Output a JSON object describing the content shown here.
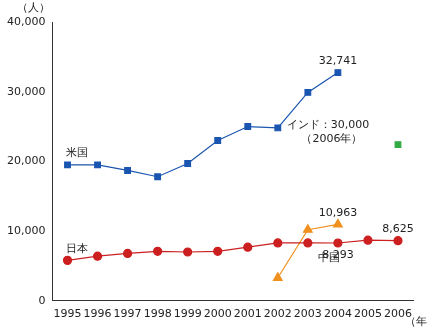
{
  "chart_data": {
    "type": "line",
    "y_label": "（人）",
    "x_label": "（年）",
    "categories": [
      "1995",
      "1996",
      "1997",
      "1998",
      "1999",
      "2000",
      "2001",
      "2002",
      "2003",
      "2004",
      "2005",
      "2006"
    ],
    "series": [
      {
        "name": "米国",
        "color": "#1a56b0",
        "marker": "square",
        "line_style": "solid",
        "values": [
          19500,
          19500,
          18700,
          17800,
          19700,
          23000,
          25000,
          24800,
          29900,
          32741,
          null,
          null
        ],
        "value_labels": [
          null,
          null,
          null,
          null,
          null,
          null,
          null,
          null,
          null,
          "32,741",
          null,
          null
        ]
      },
      {
        "name": "日本",
        "color": "#cc1f1f",
        "marker": "circle",
        "line_style": "solid",
        "values": [
          5800,
          6400,
          6800,
          7100,
          7000,
          7100,
          7700,
          8300,
          8300,
          8293,
          8700,
          8625
        ],
        "value_labels": [
          null,
          null,
          null,
          null,
          null,
          null,
          null,
          null,
          null,
          "8,293",
          null,
          "8,625"
        ]
      },
      {
        "name": "中国",
        "color": "#f0901e",
        "marker": "triangle",
        "line_style": "solid",
        "values": [
          null,
          null,
          null,
          null,
          null,
          null,
          null,
          3300,
          10200,
          10963,
          null,
          null
        ],
        "value_labels": [
          null,
          null,
          null,
          null,
          null,
          null,
          null,
          null,
          null,
          "10,963",
          null,
          null
        ]
      },
      {
        "color": "#33aa44",
        "marker": "square",
        "line_style": "none",
        "values": [
          null,
          null,
          null,
          null,
          null,
          null,
          null,
          null,
          null,
          null,
          null,
          22400
        ]
      }
    ],
    "annotation": [
      "インド：30,000",
      "（2006年）"
    ],
    "ylim": [
      0,
      40000
    ],
    "yticks": [
      0,
      {
        "value": 10000,
        "label": "10,000"
      },
      {
        "value": 20000,
        "label": "20,000"
      },
      {
        "value": 30000,
        "label": "30,000"
      },
      {
        "value": 40000,
        "label": "40,000"
      }
    ],
    "grid": false,
    "data_labels": true
  }
}
